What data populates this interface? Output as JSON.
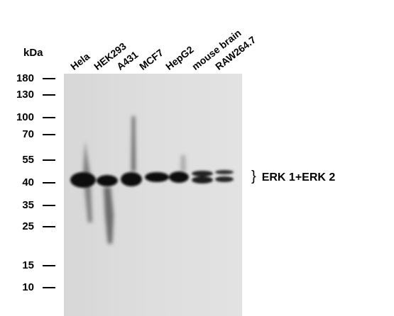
{
  "unit_label": "kDa",
  "lanes": [
    "Hela",
    "HEK293",
    "A431",
    "MCF7",
    "HepG2",
    "mouse brain",
    "RAW264.7"
  ],
  "markers": [
    "180",
    "130",
    "100",
    "70",
    "55",
    "40",
    "35",
    "25",
    "15",
    "10"
  ],
  "band_label": "ERK 1+ERK 2",
  "band_bracket": "}"
}
